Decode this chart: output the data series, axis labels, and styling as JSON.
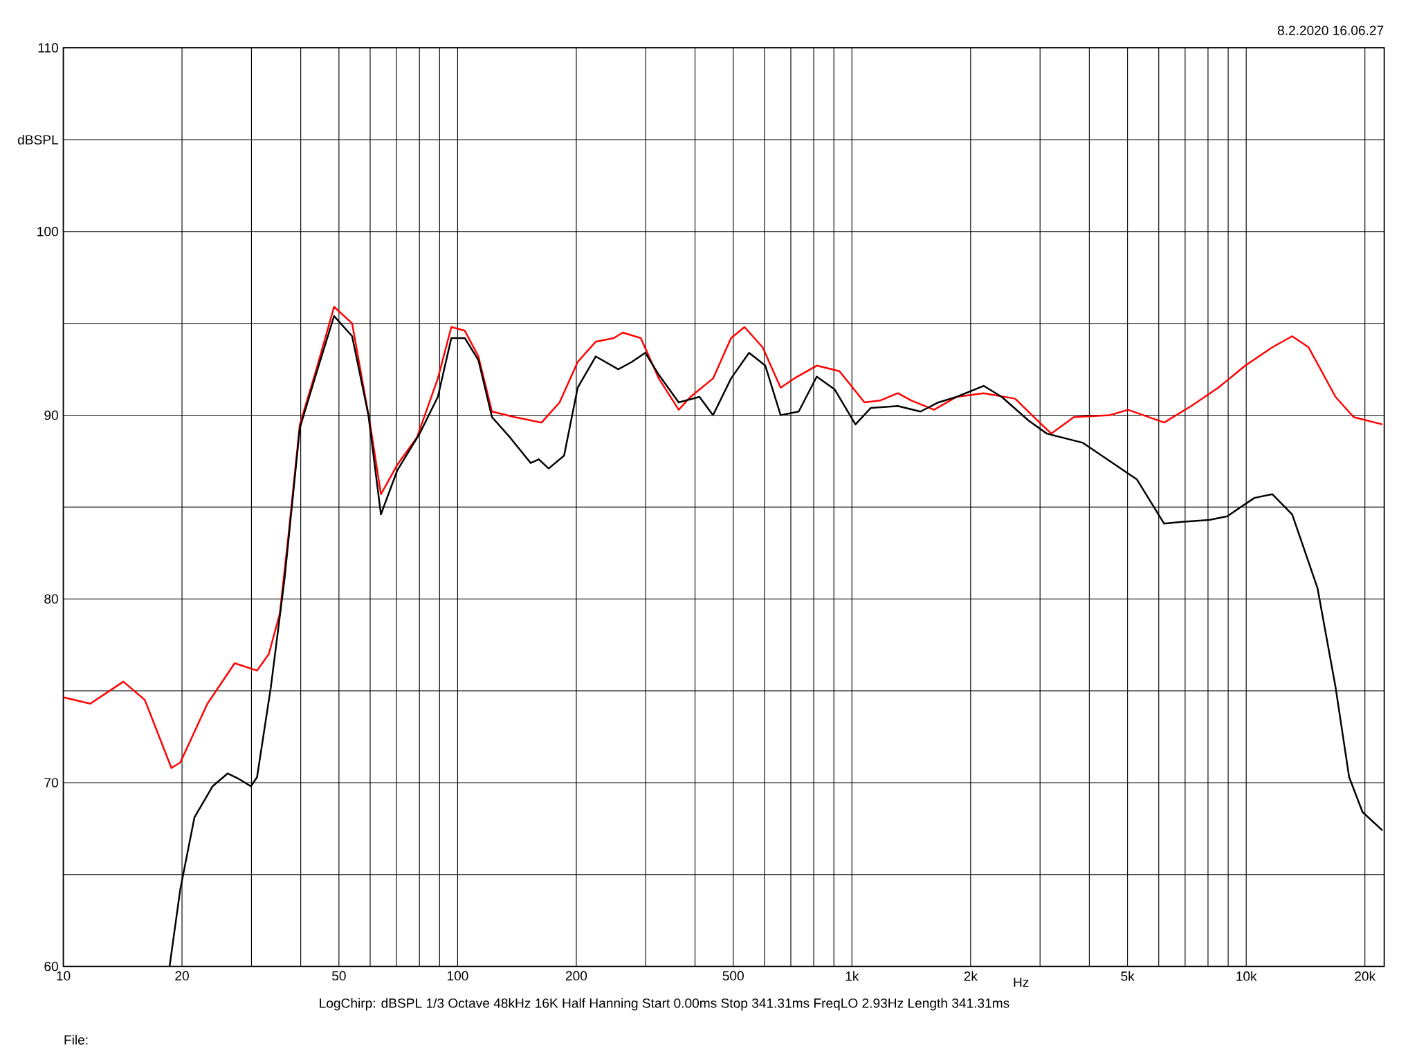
{
  "chart_data": {
    "type": "line",
    "xlabel": "Hz",
    "ylabel": "dBSPL",
    "log": "x",
    "grid": true,
    "marker": "none",
    "annotations": [
      "8.2.2020 16.06.27",
      "LogChirp:  dBSPL   1/3 Octave   48kHz   16K   Half Hanning   Start 0.00ms    Stop 341.31ms    FreqLO 2.93Hz    Length 341.31ms",
      "File:"
    ],
    "xlim": [
      10,
      22390
    ],
    "ylim": [
      60,
      110
    ],
    "xticks": [
      10,
      20,
      {
        "value": 30,
        "label": null
      },
      {
        "value": 40,
        "label": null
      },
      50,
      {
        "value": 60,
        "label": null
      },
      {
        "value": 70,
        "label": null
      },
      {
        "value": 80,
        "label": null
      },
      {
        "value": 90,
        "label": null
      },
      100,
      200,
      {
        "value": 300,
        "label": null
      },
      {
        "value": 400,
        "label": null
      },
      500,
      {
        "value": 600,
        "label": null
      },
      {
        "value": 700,
        "label": null
      },
      {
        "value": 800,
        "label": null
      },
      {
        "value": 900,
        "label": null
      },
      {
        "value": 1000,
        "label": "1k"
      },
      {
        "value": 2000,
        "label": "2k"
      },
      {
        "value": 3000,
        "label": null
      },
      {
        "value": 4000,
        "label": null
      },
      {
        "value": 5000,
        "label": "5k"
      },
      {
        "value": 6000,
        "label": null
      },
      {
        "value": 7000,
        "label": null
      },
      {
        "value": 8000,
        "label": null
      },
      {
        "value": 9000,
        "label": null
      },
      {
        "value": 10000,
        "label": "10k"
      },
      {
        "value": 20000,
        "label": "20k"
      }
    ],
    "yticks": [
      60,
      {
        "value": 65,
        "label": null
      },
      70,
      {
        "value": 75,
        "label": null
      },
      80,
      {
        "value": 85,
        "label": null
      },
      90,
      {
        "value": 95,
        "label": null
      },
      100,
      {
        "value": 105,
        "label": null
      },
      110
    ],
    "series": [
      {
        "color": "#ff0000",
        "x": [
          10,
          11.7,
          14.2,
          16.1,
          18.8,
          19.8,
          23.2,
          27.2,
          31.0,
          33.2,
          35.4,
          37.3,
          39.8,
          43.7,
          48.6,
          54.0,
          60.0,
          63.9,
          70.3,
          78.9,
          89.1,
          96.4,
          104.3,
          112.9,
          122.2,
          139.4,
          163.3,
          181.4,
          201.6,
          224,
          248.9,
          262.3,
          291.4,
          323.8,
          363.7,
          389.5,
          444.4,
          493.7,
          534.2,
          593.6,
          659.6,
          713.8,
          814.3,
          929,
          1005,
          1076,
          1178,
          1308,
          1416,
          1615,
          1843,
          2158,
          2594,
          2961,
          3203,
          3656,
          4512,
          5012,
          6193,
          7253,
          8492,
          9947,
          11650,
          13080,
          14390,
          16850,
          18720,
          22160
        ],
        "values": [
          74.65,
          74.3,
          75.5,
          74.5,
          70.8,
          71.1,
          74.3,
          76.5,
          76.1,
          77,
          79.2,
          83.6,
          89.5,
          92.4,
          95.9,
          95,
          89.5,
          85.7,
          87.3,
          88.8,
          92,
          94.8,
          94.6,
          93.2,
          90.2,
          89.9,
          89.6,
          90.7,
          92.9,
          94,
          94.2,
          94.5,
          94.2,
          92,
          90.3,
          91,
          92,
          94.2,
          94.8,
          93.7,
          91.5,
          92,
          92.7,
          92.4,
          91.5,
          90.7,
          90.8,
          91.2,
          90.8,
          90.3,
          91,
          91.2,
          90.9,
          89.7,
          89,
          89.9,
          90,
          90.3,
          89.6,
          90.5,
          91.5,
          92.7,
          93.7,
          94.3,
          93.7,
          91,
          89.9,
          89.5
        ]
      },
      {
        "color": "#000000",
        "x": [
          18.6,
          19.8,
          21.5,
          23.9,
          26.1,
          27.9,
          29.9,
          31.0,
          33.6,
          36.4,
          39.8,
          43.7,
          48.6,
          54.0,
          59.4,
          63.9,
          70.3,
          80.1,
          89.1,
          96.4,
          104.3,
          112.9,
          122.2,
          135.7,
          153.2,
          160.7,
          170.2,
          186.2,
          201.6,
          224,
          255.5,
          276.5,
          299.2,
          323.8,
          363.7,
          410.5,
          444.4,
          493.7,
          548.4,
          603,
          659.6,
          733,
          814.3,
          904.5,
          1021,
          1117,
          1308,
          1492,
          1658,
          1843,
          2158,
          2398,
          2809,
          3121,
          3853,
          4512,
          5284,
          6193,
          6878,
          8054,
          8954,
          10490,
          11650,
          13080,
          15160,
          16850,
          18240,
          19730,
          22160
        ],
        "values": [
          60,
          64.2,
          68.1,
          69.8,
          70.5,
          70.2,
          69.8,
          70.3,
          75.2,
          81.1,
          89.3,
          92.2,
          95.4,
          94.3,
          90,
          84.6,
          87,
          89,
          91,
          94.2,
          94.2,
          93,
          89.9,
          88.8,
          87.4,
          87.6,
          87.1,
          87.8,
          91.5,
          93.2,
          92.5,
          92.9,
          93.4,
          92.2,
          90.7,
          91,
          90,
          92,
          93.4,
          92.7,
          90,
          90.2,
          92.1,
          91.4,
          89.5,
          90.4,
          90.5,
          90.2,
          90.7,
          91,
          91.6,
          91,
          89.7,
          89,
          88.5,
          87.5,
          86.5,
          84.1,
          84.2,
          84.3,
          84.5,
          85.5,
          85.7,
          84.6,
          80.6,
          75.2,
          70.3,
          68.4,
          67.4
        ]
      }
    ]
  }
}
